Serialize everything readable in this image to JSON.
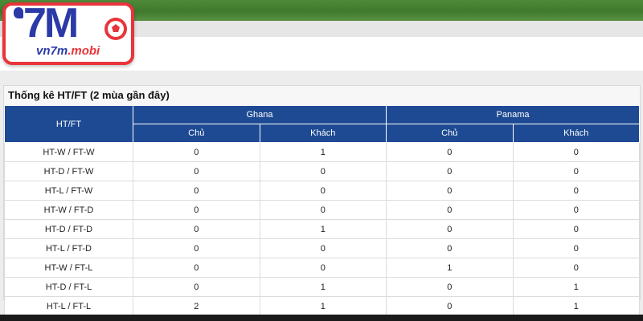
{
  "logo": {
    "mark": "7M",
    "domain_main": "vn7m",
    "domain_accent": ".mobi"
  },
  "colors": {
    "header_blue": "#1d4a93",
    "banner_green": "#4f8a3a",
    "logo_red": "#e8343a",
    "logo_blue": "#2c3aa8"
  },
  "table": {
    "title": "Thống kê HT/FT (2 mùa gần đây)",
    "row_header": "HT/FT",
    "teams": [
      "Ghana",
      "Panama"
    ],
    "subheaders": [
      "Chủ",
      "Khách",
      "Chủ",
      "Khách"
    ],
    "rows": [
      {
        "label": "HT-W / FT-W",
        "values": [
          "0",
          "1",
          "0",
          "0"
        ]
      },
      {
        "label": "HT-D / FT-W",
        "values": [
          "0",
          "0",
          "0",
          "0"
        ]
      },
      {
        "label": "HT-L / FT-W",
        "values": [
          "0",
          "0",
          "0",
          "0"
        ]
      },
      {
        "label": "HT-W / FT-D",
        "values": [
          "0",
          "0",
          "0",
          "0"
        ]
      },
      {
        "label": "HT-D / FT-D",
        "values": [
          "0",
          "1",
          "0",
          "0"
        ]
      },
      {
        "label": "HT-L / FT-D",
        "values": [
          "0",
          "0",
          "0",
          "0"
        ]
      },
      {
        "label": "HT-W / FT-L",
        "values": [
          "0",
          "0",
          "1",
          "0"
        ]
      },
      {
        "label": "HT-D / FT-L",
        "values": [
          "0",
          "1",
          "0",
          "1"
        ]
      },
      {
        "label": "HT-L / FT-L",
        "values": [
          "2",
          "1",
          "0",
          "1"
        ]
      }
    ]
  }
}
